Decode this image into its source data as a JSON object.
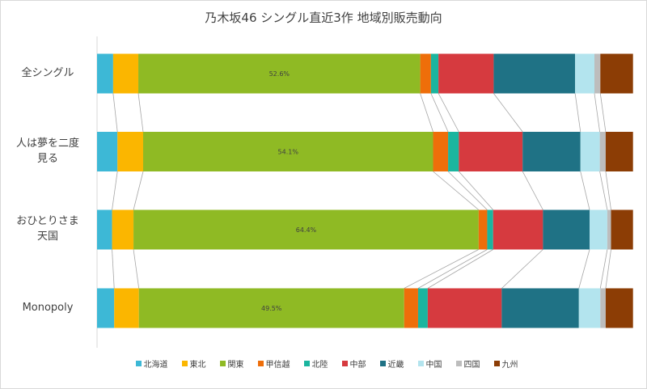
{
  "chart_data": {
    "type": "bar",
    "orientation": "horizontal",
    "stacking": "percent",
    "title": "乃木坂46 シングル直近3作 地域別販売動向",
    "categories": [
      "全シングル",
      "人は夢を二度見る",
      "おひとりさま天国",
      "Monopoly"
    ],
    "category_lines": [
      [
        "全シングル"
      ],
      [
        "人は夢を二度",
        "見る"
      ],
      [
        "おひとりさま",
        "天国"
      ],
      [
        "Monopoly"
      ]
    ],
    "series": [
      {
        "name": "北海道",
        "color": "#3DB8D6",
        "values": [
          3.0,
          3.8,
          2.8,
          3.2
        ]
      },
      {
        "name": "東北",
        "color": "#FBB600",
        "values": [
          4.7,
          4.8,
          4.0,
          4.6
        ]
      },
      {
        "name": "関東",
        "color": "#8FBA24",
        "values": [
          52.6,
          54.1,
          64.4,
          49.5
        ],
        "labels": [
          "52.6%",
          "54.1%",
          "64.4%",
          "49.5%"
        ]
      },
      {
        "name": "甲信越",
        "color": "#EE6E0A",
        "values": [
          2.0,
          2.8,
          1.6,
          2.6
        ]
      },
      {
        "name": "北陸",
        "color": "#1BB59F",
        "values": [
          1.4,
          2.0,
          1.1,
          1.8
        ]
      },
      {
        "name": "中部",
        "color": "#D63A3F",
        "values": [
          10.3,
          11.9,
          9.3,
          13.8
        ]
      },
      {
        "name": "近畿",
        "color": "#1F7285",
        "values": [
          15.2,
          10.8,
          8.7,
          14.4
        ]
      },
      {
        "name": "中国",
        "color": "#B3E4EE",
        "values": [
          3.6,
          3.6,
          3.3,
          4.0
        ]
      },
      {
        "name": "四国",
        "color": "#BDBDBD",
        "values": [
          1.1,
          1.1,
          0.7,
          1.0
        ]
      },
      {
        "name": "九州",
        "color": "#8C3D05",
        "values": [
          6.1,
          5.1,
          4.1,
          5.1
        ]
      }
    ],
    "xlim": [
      0,
      100
    ],
    "series_lines": true,
    "grid": false,
    "legend": "bottom"
  }
}
